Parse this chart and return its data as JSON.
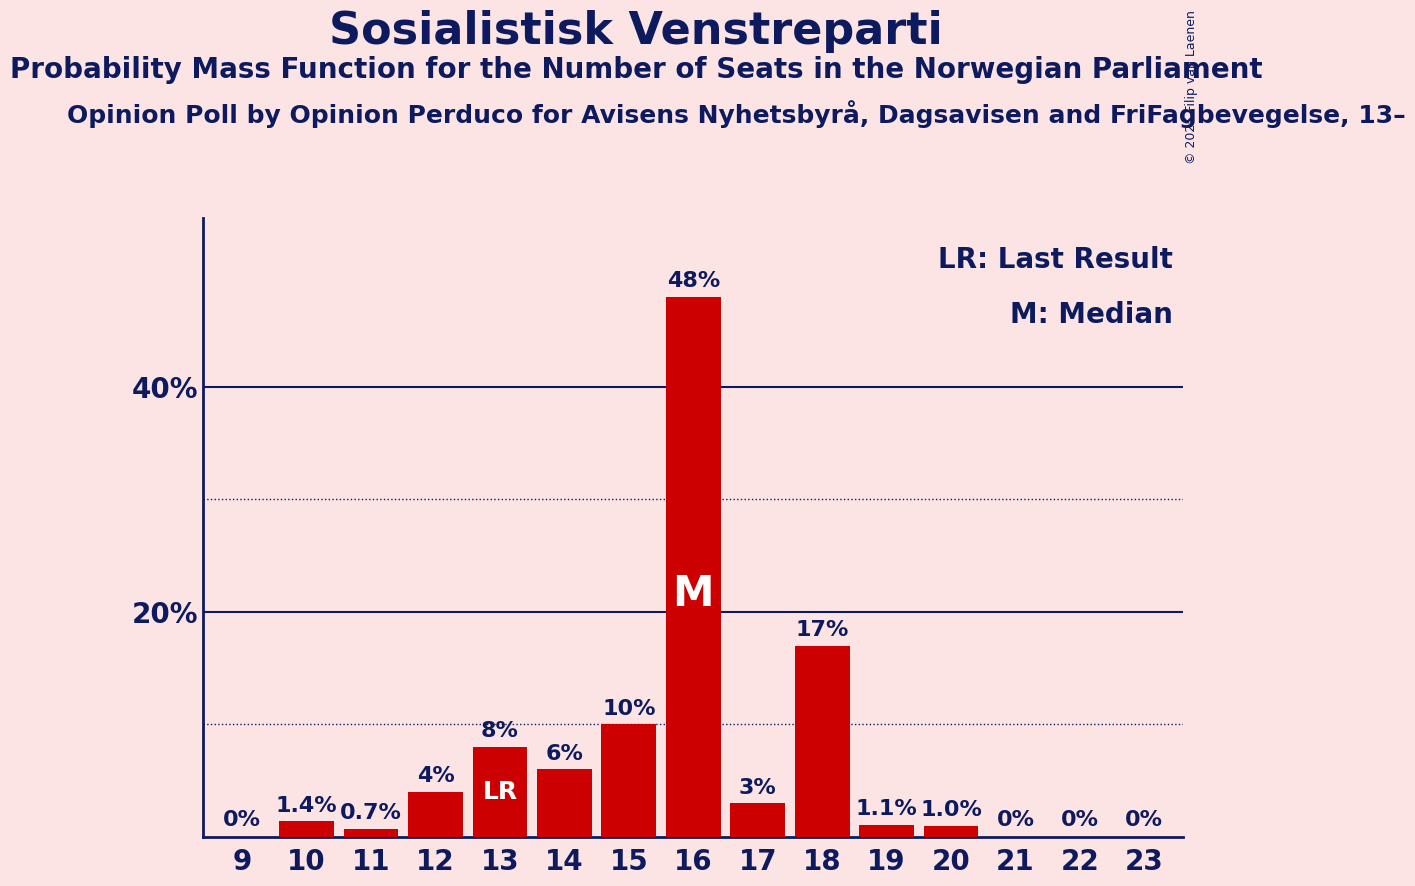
{
  "title": "Sosialistisk Venstreparti",
  "subtitle": "Probability Mass Function for the Number of Seats in the Norwegian Parliament",
  "source_line": "Opinion Poll by Opinion Perduco for Avisens Nyhetsbyrå, Dagsavisen and FriFagbevegelse, 13–",
  "copyright": "© 2025 Filip van Laenen",
  "categories": [
    9,
    10,
    11,
    12,
    13,
    14,
    15,
    16,
    17,
    18,
    19,
    20,
    21,
    22,
    23
  ],
  "values": [
    0.0,
    1.4,
    0.7,
    4.0,
    8.0,
    6.0,
    10.0,
    48.0,
    3.0,
    17.0,
    1.1,
    1.0,
    0.0,
    0.0,
    0.0
  ],
  "labels": [
    "0%",
    "1.4%",
    "0.7%",
    "4%",
    "8%",
    "6%",
    "10%",
    "48%",
    "3%",
    "17%",
    "1.1%",
    "1.0%",
    "0%",
    "0%",
    "0%"
  ],
  "bar_color": "#cc0000",
  "background_color": "#fce4e4",
  "title_color": "#0d1b5e",
  "axis_color": "#0d1b5e",
  "median_seat": 16,
  "last_result_seat": 13,
  "ylim": [
    0,
    55
  ],
  "legend_lr": "LR: Last Result",
  "legend_m": "M: Median",
  "title_fontsize": 32,
  "subtitle_fontsize": 20,
  "source_fontsize": 18,
  "bar_label_fontsize": 16,
  "axis_label_fontsize": 20,
  "legend_fontsize": 20,
  "copyright_fontsize": 9
}
